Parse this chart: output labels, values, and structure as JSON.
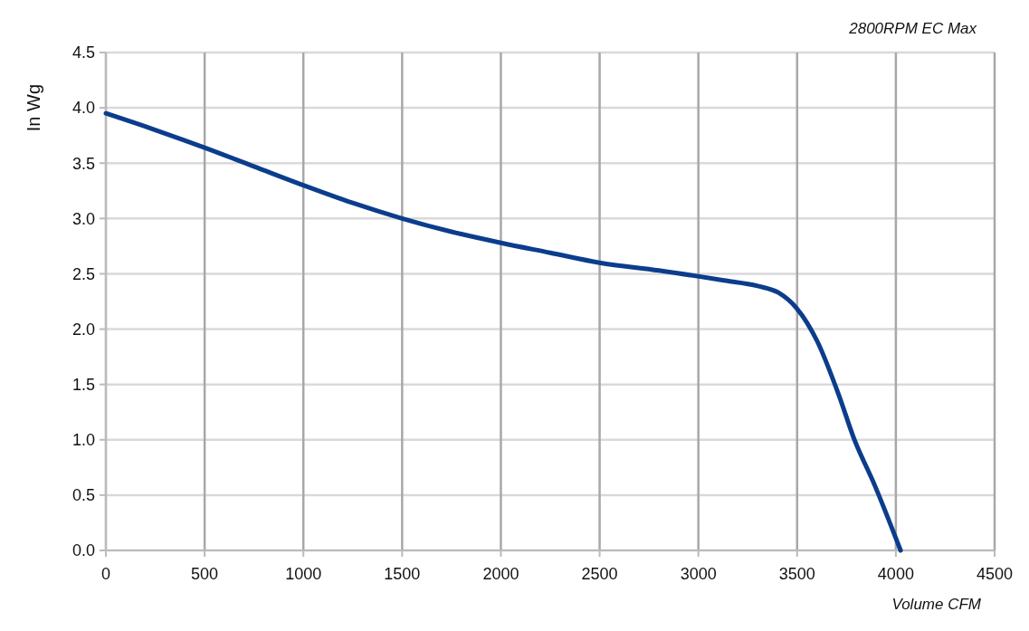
{
  "chart_data": {
    "type": "line",
    "title": "2800RPM EC Max",
    "xlabel": "Volume CFM",
    "ylabel": "In Wg",
    "xlim": [
      0,
      4500
    ],
    "xticks": [
      0,
      500,
      1000,
      1500,
      2000,
      2500,
      3000,
      3500,
      4000,
      4500
    ],
    "ylim": [
      0,
      4.5
    ],
    "yticks": [
      {
        "value": 0,
        "label": "0.0"
      },
      0.5,
      {
        "value": 1,
        "label": "1.0"
      },
      1.5,
      {
        "value": 2,
        "label": "2.0"
      },
      2.5,
      {
        "value": 3,
        "label": "3.0"
      },
      3.5,
      {
        "value": 4,
        "label": "4.0"
      },
      4.5
    ],
    "grid": true,
    "marker": "none",
    "line_style": "solid",
    "series": [
      {
        "color": "#0b3d8c",
        "x": [
          0,
          250,
          500,
          750,
          1000,
          1250,
          1500,
          1750,
          2000,
          2250,
          2500,
          2800,
          3130,
          3300,
          3405,
          3497,
          3602,
          3712,
          3786,
          3895,
          4024
        ],
        "values": [
          3.95,
          3.8,
          3.64,
          3.47,
          3.3,
          3.14,
          3.0,
          2.88,
          2.78,
          2.69,
          2.6,
          2.53,
          2.44,
          2.39,
          2.33,
          2.19,
          1.89,
          1.4,
          1.02,
          0.58,
          0.0
        ]
      }
    ]
  }
}
